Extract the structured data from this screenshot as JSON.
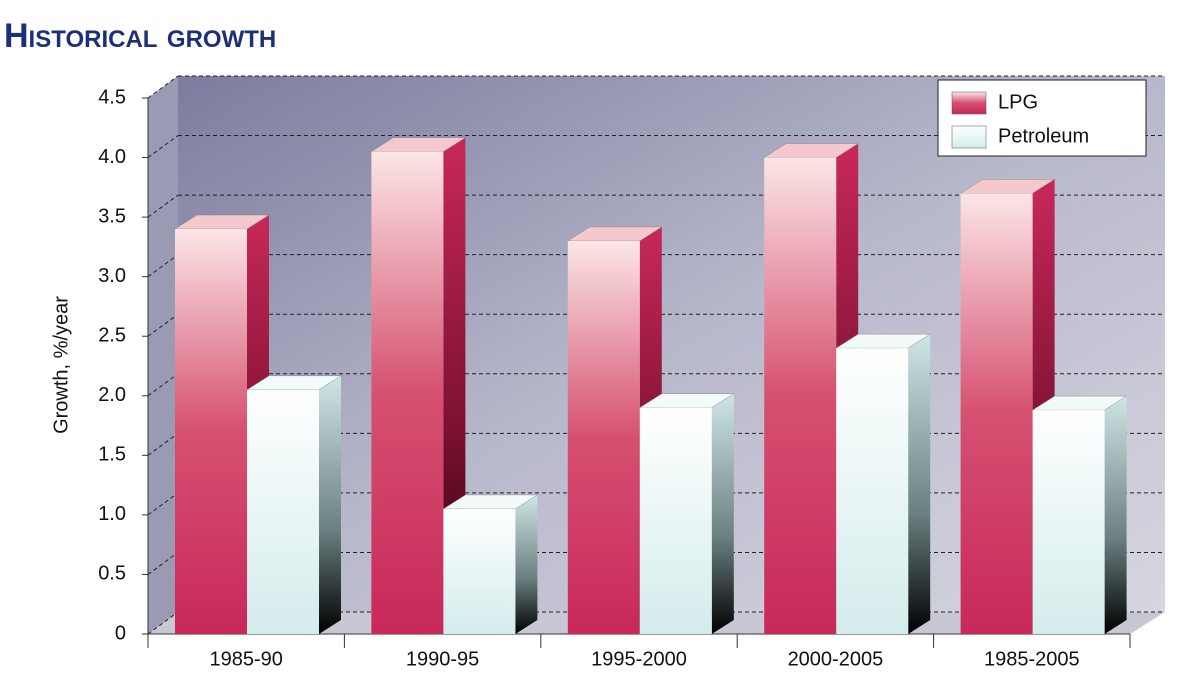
{
  "chart_data": {
    "type": "bar3d",
    "title": "Historical growth",
    "y_label": "Growth, %/year",
    "categories": [
      "1985-90",
      "1990-95",
      "1995-2000",
      "2000-2005",
      "1985-2005"
    ],
    "series": [
      {
        "name": "LPG",
        "color": "#c8285a",
        "values": [
          3.4,
          4.05,
          3.3,
          4.0,
          3.7
        ]
      },
      {
        "name": "Petroleum",
        "color": "#d4ecec",
        "values": [
          2.05,
          1.05,
          1.9,
          2.4,
          1.88
        ]
      }
    ],
    "ylim": [
      0,
      4.5
    ],
    "yticks": [
      0,
      0.5,
      {
        "value": 1,
        "label": "1.0"
      },
      1.5,
      {
        "value": 2,
        "label": "2.0"
      },
      2.5,
      {
        "value": 3,
        "label": "3.0"
      },
      3.5,
      {
        "value": 4,
        "label": "4.0"
      },
      4.5
    ],
    "grid": true,
    "legend": "top-right"
  }
}
